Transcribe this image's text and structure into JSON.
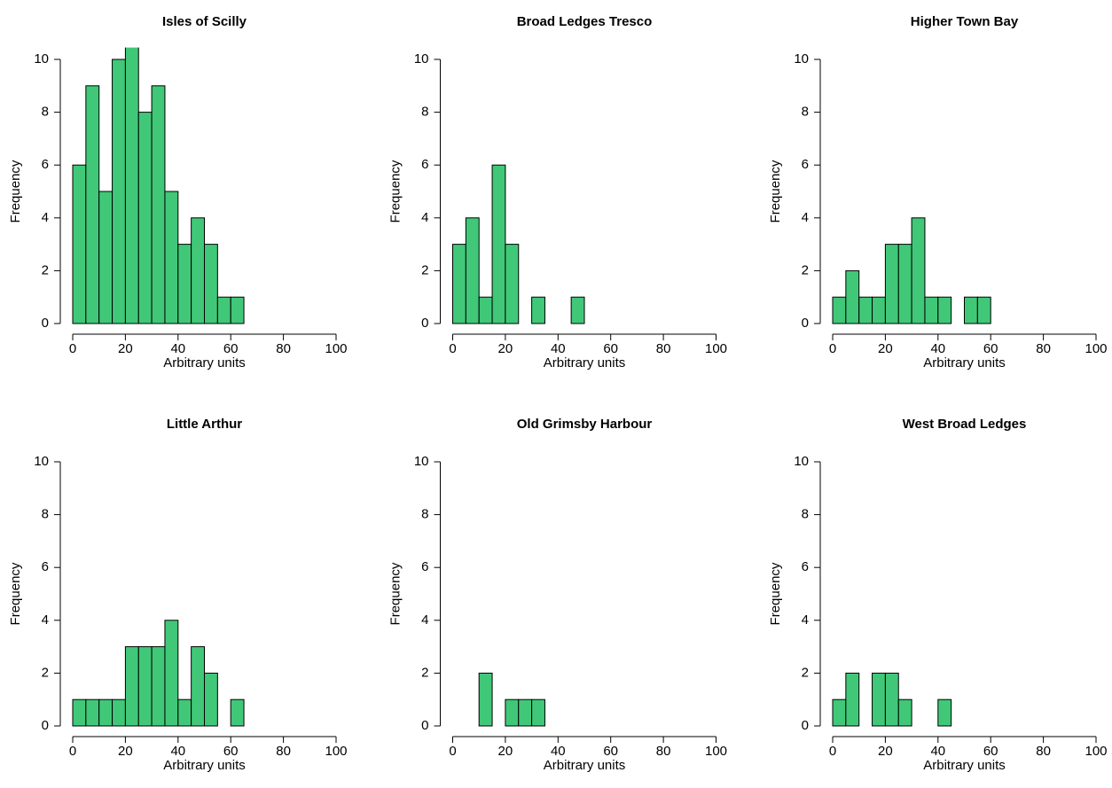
{
  "chart_data": [
    {
      "type": "histogram",
      "title": "Isles of Scilly",
      "x_label": "Arbitrary units",
      "y_label": "Frequency",
      "color": "#40c878",
      "bins": [
        0,
        5,
        10,
        15,
        20,
        25,
        30,
        35,
        40,
        45,
        50,
        55,
        60,
        65
      ],
      "values": [
        6,
        9,
        5,
        10,
        11,
        8,
        9,
        5,
        3,
        4,
        3,
        1,
        1
      ],
      "xlim": [
        0,
        100
      ],
      "ylim": [
        0,
        10
      ],
      "xticks": [
        0,
        20,
        40,
        60,
        80,
        100
      ],
      "yticks": [
        0,
        2,
        4,
        6,
        8,
        10
      ]
    },
    {
      "type": "histogram",
      "title": "Broad Ledges Tresco",
      "x_label": "Arbitrary units",
      "y_label": "Frequency",
      "color": "#40c878",
      "bins": [
        0,
        5,
        10,
        15,
        20,
        25,
        30,
        35,
        40,
        45,
        50
      ],
      "values": [
        3,
        4,
        1,
        6,
        3,
        0,
        1,
        0,
        0,
        1
      ],
      "xlim": [
        0,
        100
      ],
      "ylim": [
        0,
        10
      ],
      "xticks": [
        0,
        20,
        40,
        60,
        80,
        100
      ],
      "yticks": [
        0,
        2,
        4,
        6,
        8,
        10
      ]
    },
    {
      "type": "histogram",
      "title": "Higher Town Bay",
      "x_label": "Arbitrary units",
      "y_label": "Frequency",
      "color": "#40c878",
      "bins": [
        0,
        5,
        10,
        15,
        20,
        25,
        30,
        35,
        40,
        45,
        50,
        55,
        60
      ],
      "values": [
        1,
        2,
        1,
        1,
        3,
        3,
        4,
        1,
        1,
        0,
        1,
        1
      ],
      "xlim": [
        0,
        100
      ],
      "ylim": [
        0,
        10
      ],
      "xticks": [
        0,
        20,
        40,
        60,
        80,
        100
      ],
      "yticks": [
        0,
        2,
        4,
        6,
        8,
        10
      ]
    },
    {
      "type": "histogram",
      "title": "Little Arthur",
      "x_label": "Arbitrary units",
      "y_label": "Frequency",
      "color": "#40c878",
      "bins": [
        0,
        5,
        10,
        15,
        20,
        25,
        30,
        35,
        40,
        45,
        50,
        55,
        60,
        65
      ],
      "values": [
        1,
        1,
        1,
        1,
        3,
        3,
        3,
        4,
        1,
        3,
        2,
        0,
        1
      ],
      "xlim": [
        0,
        100
      ],
      "ylim": [
        0,
        10
      ],
      "xticks": [
        0,
        20,
        40,
        60,
        80,
        100
      ],
      "yticks": [
        0,
        2,
        4,
        6,
        8,
        10
      ]
    },
    {
      "type": "histogram",
      "title": "Old Grimsby Harbour",
      "x_label": "Arbitrary units",
      "y_label": "Frequency",
      "color": "#40c878",
      "bins": [
        10,
        15,
        20,
        25,
        30,
        35
      ],
      "values": [
        2,
        0,
        1,
        1,
        1
      ],
      "xlim": [
        0,
        100
      ],
      "ylim": [
        0,
        10
      ],
      "xticks": [
        0,
        20,
        40,
        60,
        80,
        100
      ],
      "yticks": [
        0,
        2,
        4,
        6,
        8,
        10
      ]
    },
    {
      "type": "histogram",
      "title": "West Broad Ledges",
      "x_label": "Arbitrary units",
      "y_label": "Frequency",
      "color": "#40c878",
      "bins": [
        0,
        5,
        10,
        15,
        20,
        25,
        30,
        35,
        40,
        45
      ],
      "values": [
        1,
        2,
        0,
        2,
        2,
        1,
        0,
        0,
        1
      ],
      "xlim": [
        0,
        100
      ],
      "ylim": [
        0,
        10
      ],
      "xticks": [
        0,
        20,
        40,
        60,
        80,
        100
      ],
      "yticks": [
        0,
        2,
        4,
        6,
        8,
        10
      ]
    }
  ]
}
